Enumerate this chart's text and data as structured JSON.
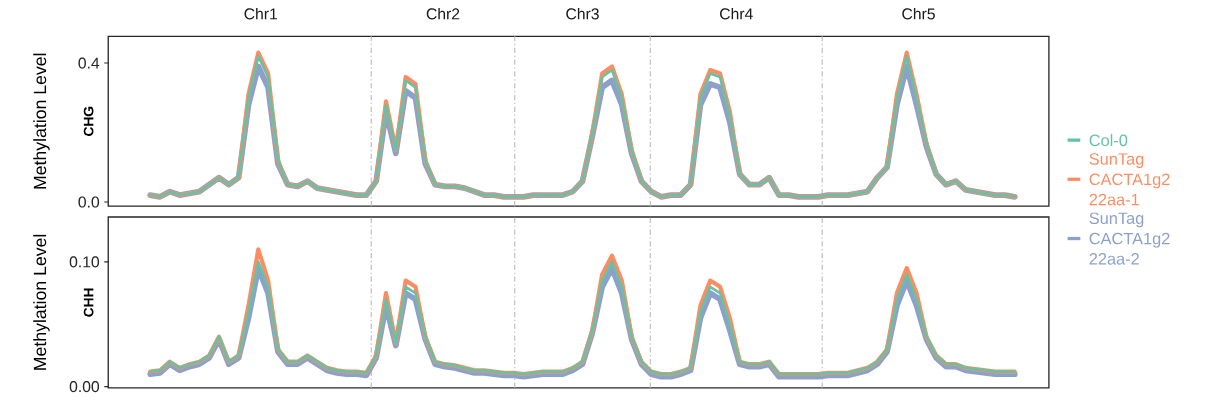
{
  "chart_data": [
    {
      "type": "line",
      "title": "CHG",
      "ylabel": "Methylation Level",
      "tick_labels": "y",
      "legend": "right",
      "annotations": [
        "Chr1",
        "Chr2",
        "Chr3",
        "Chr4",
        "Chr5"
      ],
      "ylim": [
        -0.012,
        0.477
      ],
      "categories": [
        null,
        null,
        null,
        null,
        null,
        null,
        null,
        null,
        null,
        null,
        null,
        null,
        null,
        null,
        null,
        null,
        null,
        null,
        null,
        null,
        null,
        null,
        null,
        null,
        null,
        null,
        null,
        null,
        null,
        null,
        null,
        null,
        null,
        null,
        null,
        null,
        null,
        null,
        null,
        null,
        null,
        null,
        null,
        null,
        null,
        null,
        null,
        null,
        null,
        null,
        null,
        null,
        null,
        null,
        null,
        null,
        null,
        null,
        null,
        null,
        null,
        null,
        null,
        null,
        null,
        null,
        null,
        null,
        null,
        null,
        null,
        null,
        null,
        null,
        null,
        null,
        null,
        null,
        null,
        null,
        null,
        null,
        null,
        null,
        null,
        null,
        null,
        null,
        null
      ],
      "yticks": [
        {
          "value": 0,
          "label": "0.0"
        },
        {
          "value": 0.4,
          "label": "0.4"
        }
      ],
      "series": [
        {
          "name": "Col-0",
          "color": "#66c2a5",
          "values": [
            0.02,
            0.015,
            0.03,
            0.02,
            0.025,
            0.03,
            0.05,
            0.07,
            0.05,
            0.07,
            0.3,
            0.42,
            0.36,
            0.12,
            0.05,
            0.045,
            0.06,
            0.04,
            0.035,
            0.03,
            0.025,
            0.02,
            0.02,
            0.06,
            0.28,
            0.15,
            0.35,
            0.33,
            0.12,
            0.05,
            0.045,
            0.045,
            0.04,
            0.03,
            0.02,
            0.02,
            0.015,
            0.015,
            0.015,
            0.02,
            0.02,
            0.02,
            0.02,
            0.03,
            0.06,
            0.2,
            0.36,
            0.38,
            0.3,
            0.15,
            0.06,
            0.03,
            0.015,
            0.02,
            0.02,
            0.05,
            0.3,
            0.37,
            0.36,
            0.25,
            0.08,
            0.05,
            0.05,
            0.07,
            0.02,
            0.02,
            0.015,
            0.015,
            0.015,
            0.02,
            0.02,
            0.02,
            0.025,
            0.03,
            0.07,
            0.1,
            0.3,
            0.42,
            0.3,
            0.17,
            0.08,
            0.05,
            0.06,
            0.035,
            0.03,
            0.025,
            0.02,
            0.02,
            0.015
          ]
        },
        {
          "name": "SunTag CACTA1g2 22aa-1",
          "color": "#fc8d62",
          "values": [
            0.02,
            0.015,
            0.03,
            0.02,
            0.025,
            0.03,
            0.05,
            0.07,
            0.05,
            0.07,
            0.31,
            0.43,
            0.37,
            0.12,
            0.05,
            0.045,
            0.06,
            0.04,
            0.035,
            0.03,
            0.025,
            0.02,
            0.02,
            0.06,
            0.29,
            0.15,
            0.36,
            0.34,
            0.12,
            0.05,
            0.045,
            0.045,
            0.04,
            0.03,
            0.02,
            0.02,
            0.015,
            0.015,
            0.015,
            0.02,
            0.02,
            0.02,
            0.02,
            0.03,
            0.06,
            0.2,
            0.37,
            0.39,
            0.31,
            0.15,
            0.06,
            0.03,
            0.015,
            0.02,
            0.02,
            0.05,
            0.31,
            0.38,
            0.37,
            0.26,
            0.08,
            0.05,
            0.05,
            0.07,
            0.02,
            0.02,
            0.015,
            0.015,
            0.015,
            0.02,
            0.02,
            0.02,
            0.025,
            0.03,
            0.07,
            0.1,
            0.31,
            0.43,
            0.31,
            0.17,
            0.08,
            0.05,
            0.06,
            0.035,
            0.03,
            0.025,
            0.02,
            0.02,
            0.015
          ]
        },
        {
          "name": "SunTag CACTA1g2 22aa-2",
          "color": "#8da0cb",
          "values": [
            0.02,
            0.015,
            0.03,
            0.02,
            0.025,
            0.03,
            0.05,
            0.07,
            0.05,
            0.07,
            0.28,
            0.39,
            0.33,
            0.11,
            0.05,
            0.045,
            0.06,
            0.04,
            0.035,
            0.03,
            0.025,
            0.02,
            0.02,
            0.06,
            0.26,
            0.14,
            0.32,
            0.3,
            0.11,
            0.05,
            0.045,
            0.045,
            0.04,
            0.03,
            0.02,
            0.02,
            0.015,
            0.015,
            0.015,
            0.02,
            0.02,
            0.02,
            0.02,
            0.03,
            0.06,
            0.19,
            0.33,
            0.35,
            0.28,
            0.14,
            0.06,
            0.03,
            0.015,
            0.02,
            0.02,
            0.05,
            0.28,
            0.34,
            0.33,
            0.23,
            0.08,
            0.05,
            0.05,
            0.07,
            0.02,
            0.02,
            0.015,
            0.015,
            0.015,
            0.02,
            0.02,
            0.02,
            0.025,
            0.03,
            0.07,
            0.1,
            0.28,
            0.39,
            0.28,
            0.16,
            0.08,
            0.05,
            0.06,
            0.035,
            0.03,
            0.025,
            0.02,
            0.02,
            0.015
          ]
        }
      ]
    },
    {
      "type": "line",
      "title": "CHH",
      "ylabel": "Methylation Level",
      "tick_labels": "y",
      "ylim": [
        -0.001,
        0.136
      ],
      "categories": [
        null,
        null,
        null,
        null,
        null,
        null,
        null,
        null,
        null,
        null,
        null,
        null,
        null,
        null,
        null,
        null,
        null,
        null,
        null,
        null,
        null,
        null,
        null,
        null,
        null,
        null,
        null,
        null,
        null,
        null,
        null,
        null,
        null,
        null,
        null,
        null,
        null,
        null,
        null,
        null,
        null,
        null,
        null,
        null,
        null,
        null,
        null,
        null,
        null,
        null,
        null,
        null,
        null,
        null,
        null,
        null,
        null,
        null,
        null,
        null,
        null,
        null,
        null,
        null,
        null,
        null,
        null,
        null,
        null,
        null,
        null,
        null,
        null,
        null,
        null,
        null,
        null,
        null,
        null,
        null,
        null,
        null,
        null,
        null,
        null,
        null,
        null,
        null,
        null
      ],
      "yticks": [
        {
          "value": 0,
          "label": "0.00"
        },
        {
          "value": 0.1,
          "label": "0.10"
        }
      ],
      "series": [
        {
          "color": "#66c2a5",
          "values": [
            0.012,
            0.013,
            0.02,
            0.015,
            0.018,
            0.02,
            0.025,
            0.04,
            0.02,
            0.025,
            0.06,
            0.1,
            0.08,
            0.03,
            0.02,
            0.02,
            0.025,
            0.02,
            0.015,
            0.013,
            0.012,
            0.012,
            0.011,
            0.025,
            0.07,
            0.035,
            0.08,
            0.075,
            0.04,
            0.02,
            0.018,
            0.017,
            0.015,
            0.013,
            0.013,
            0.012,
            0.011,
            0.011,
            0.01,
            0.011,
            0.012,
            0.012,
            0.012,
            0.015,
            0.02,
            0.045,
            0.085,
            0.1,
            0.08,
            0.04,
            0.02,
            0.012,
            0.01,
            0.01,
            0.012,
            0.015,
            0.06,
            0.08,
            0.075,
            0.05,
            0.02,
            0.018,
            0.018,
            0.02,
            0.01,
            0.01,
            0.01,
            0.01,
            0.01,
            0.011,
            0.011,
            0.011,
            0.013,
            0.015,
            0.02,
            0.03,
            0.07,
            0.09,
            0.07,
            0.04,
            0.025,
            0.018,
            0.018,
            0.015,
            0.014,
            0.013,
            0.012,
            0.012,
            0.012
          ]
        },
        {
          "color": "#fc8d62",
          "values": [
            0.012,
            0.013,
            0.02,
            0.015,
            0.018,
            0.02,
            0.025,
            0.04,
            0.02,
            0.025,
            0.065,
            0.11,
            0.085,
            0.03,
            0.02,
            0.02,
            0.025,
            0.02,
            0.015,
            0.013,
            0.012,
            0.012,
            0.011,
            0.025,
            0.075,
            0.035,
            0.085,
            0.08,
            0.04,
            0.02,
            0.018,
            0.017,
            0.015,
            0.013,
            0.013,
            0.012,
            0.011,
            0.011,
            0.01,
            0.011,
            0.012,
            0.012,
            0.012,
            0.015,
            0.02,
            0.045,
            0.09,
            0.105,
            0.085,
            0.04,
            0.02,
            0.012,
            0.01,
            0.01,
            0.012,
            0.015,
            0.065,
            0.085,
            0.08,
            0.055,
            0.02,
            0.018,
            0.018,
            0.02,
            0.01,
            0.01,
            0.01,
            0.01,
            0.01,
            0.011,
            0.011,
            0.011,
            0.013,
            0.015,
            0.02,
            0.03,
            0.075,
            0.095,
            0.075,
            0.04,
            0.025,
            0.018,
            0.018,
            0.015,
            0.014,
            0.013,
            0.012,
            0.012,
            0.012
          ]
        },
        {
          "color": "#8da0cb",
          "values": [
            0.01,
            0.011,
            0.018,
            0.013,
            0.016,
            0.018,
            0.023,
            0.038,
            0.018,
            0.023,
            0.055,
            0.095,
            0.075,
            0.028,
            0.018,
            0.018,
            0.023,
            0.018,
            0.013,
            0.011,
            0.01,
            0.01,
            0.009,
            0.023,
            0.065,
            0.033,
            0.075,
            0.07,
            0.038,
            0.018,
            0.016,
            0.015,
            0.013,
            0.011,
            0.011,
            0.01,
            0.009,
            0.009,
            0.008,
            0.009,
            0.01,
            0.01,
            0.01,
            0.013,
            0.018,
            0.043,
            0.08,
            0.095,
            0.075,
            0.038,
            0.018,
            0.01,
            0.008,
            0.008,
            0.01,
            0.013,
            0.055,
            0.075,
            0.07,
            0.045,
            0.018,
            0.016,
            0.016,
            0.018,
            0.008,
            0.008,
            0.008,
            0.008,
            0.008,
            0.009,
            0.009,
            0.009,
            0.011,
            0.013,
            0.018,
            0.028,
            0.065,
            0.085,
            0.065,
            0.038,
            0.023,
            0.016,
            0.016,
            0.013,
            0.012,
            0.011,
            0.01,
            0.01,
            0.01
          ]
        }
      ]
    }
  ]
}
